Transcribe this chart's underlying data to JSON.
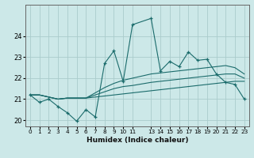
{
  "xlabel": "Humidex (Indice chaleur)",
  "background_color": "#cce8e8",
  "grid_color": "#aacccc",
  "line_color": "#1a6b6b",
  "x_values": [
    0,
    1,
    2,
    3,
    4,
    5,
    6,
    7,
    8,
    9,
    10,
    11,
    13,
    14,
    15,
    16,
    17,
    18,
    19,
    20,
    21,
    22,
    23
  ],
  "main_line": [
    21.2,
    20.85,
    21.0,
    20.65,
    20.35,
    19.95,
    20.5,
    20.15,
    22.7,
    23.3,
    21.85,
    24.55,
    24.85,
    22.35,
    22.8,
    22.55,
    23.25,
    22.85,
    22.9,
    22.2,
    21.8,
    21.7,
    21.0
  ],
  "line2": [
    21.2,
    21.2,
    21.1,
    21.0,
    21.05,
    21.05,
    21.05,
    21.1,
    21.15,
    21.2,
    21.25,
    21.3,
    21.4,
    21.45,
    21.5,
    21.55,
    21.6,
    21.65,
    21.7,
    21.75,
    21.8,
    21.85,
    21.85
  ],
  "line3": [
    21.2,
    21.2,
    21.1,
    21.0,
    21.05,
    21.05,
    21.05,
    21.2,
    21.35,
    21.5,
    21.6,
    21.65,
    21.8,
    21.85,
    21.9,
    21.95,
    22.0,
    22.05,
    22.1,
    22.15,
    22.2,
    22.2,
    22.0
  ],
  "line4": [
    21.2,
    21.2,
    21.1,
    21.0,
    21.05,
    21.05,
    21.05,
    21.3,
    21.55,
    21.75,
    21.9,
    22.0,
    22.2,
    22.25,
    22.3,
    22.35,
    22.4,
    22.45,
    22.5,
    22.55,
    22.6,
    22.5,
    22.2
  ],
  "ylim": [
    19.7,
    25.5
  ],
  "yticks": [
    20,
    21,
    22,
    23,
    24
  ],
  "xtick_labels": [
    "0",
    "1",
    "2",
    "3",
    "4",
    "5",
    "6",
    "7",
    "8",
    "9",
    "10",
    "11",
    "13",
    "14",
    "15",
    "16",
    "17",
    "18",
    "19",
    "20",
    "21",
    "22",
    "23"
  ],
  "xlabel_fontsize": 6.5,
  "ytick_fontsize": 6.0,
  "xtick_fontsize": 5.2
}
